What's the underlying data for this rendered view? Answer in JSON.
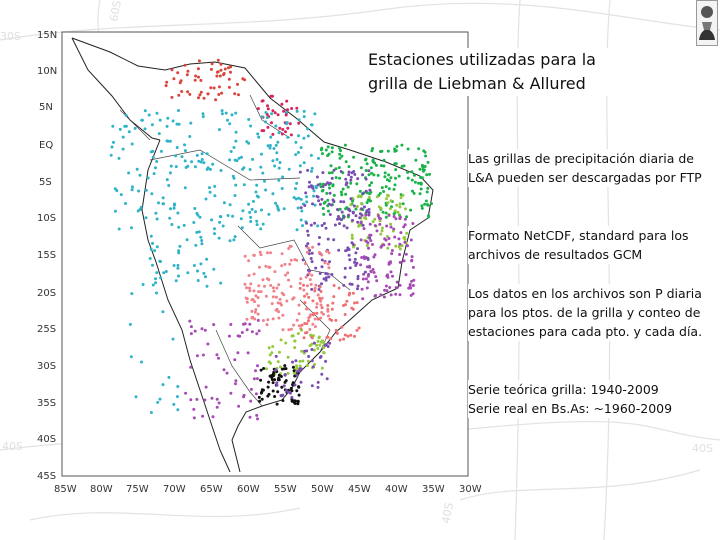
{
  "title": "Estaciones utilizadas para la grilla de Liebman & Allured",
  "bullets": [
    "Las grillas de precipitación diaria de L&A pueden ser descargadas por FTP",
    "Formato NetCDF, standard para los archivos de resultados GCM",
    "Los datos en los archivos son P diaria para los ptos. de la grilla y conteo de estaciones para cada pto. y cada día.",
    "Serie teórica grilla: 1940-2009",
    "Serie real en Bs.As: ~1960-2009"
  ],
  "map": {
    "lat_labels": [
      "15N",
      "10N",
      "5N",
      "EQ",
      "5S",
      "10S",
      "15S",
      "20S",
      "25S",
      "30S",
      "35S",
      "40S",
      "45S"
    ],
    "lon_labels": [
      "85W",
      "80W",
      "75W",
      "70W",
      "65W",
      "60W",
      "55W",
      "50W",
      "45W",
      "40W",
      "35W",
      "30W"
    ],
    "background_labels": [
      "30S",
      "40S",
      "40S",
      "40S",
      "60S"
    ],
    "station_colors": {
      "red": "#d9453c",
      "magenta": "#d6245e",
      "cyan": "#2eb3c7",
      "green": "#19b34a",
      "lime": "#95c93d",
      "purple": "#7a4eb0",
      "violet": "#a64bb4",
      "salmon": "#f0828a",
      "pink": "#ef6f72",
      "black": "#111111"
    }
  },
  "icons": [
    "logo-icon"
  ]
}
